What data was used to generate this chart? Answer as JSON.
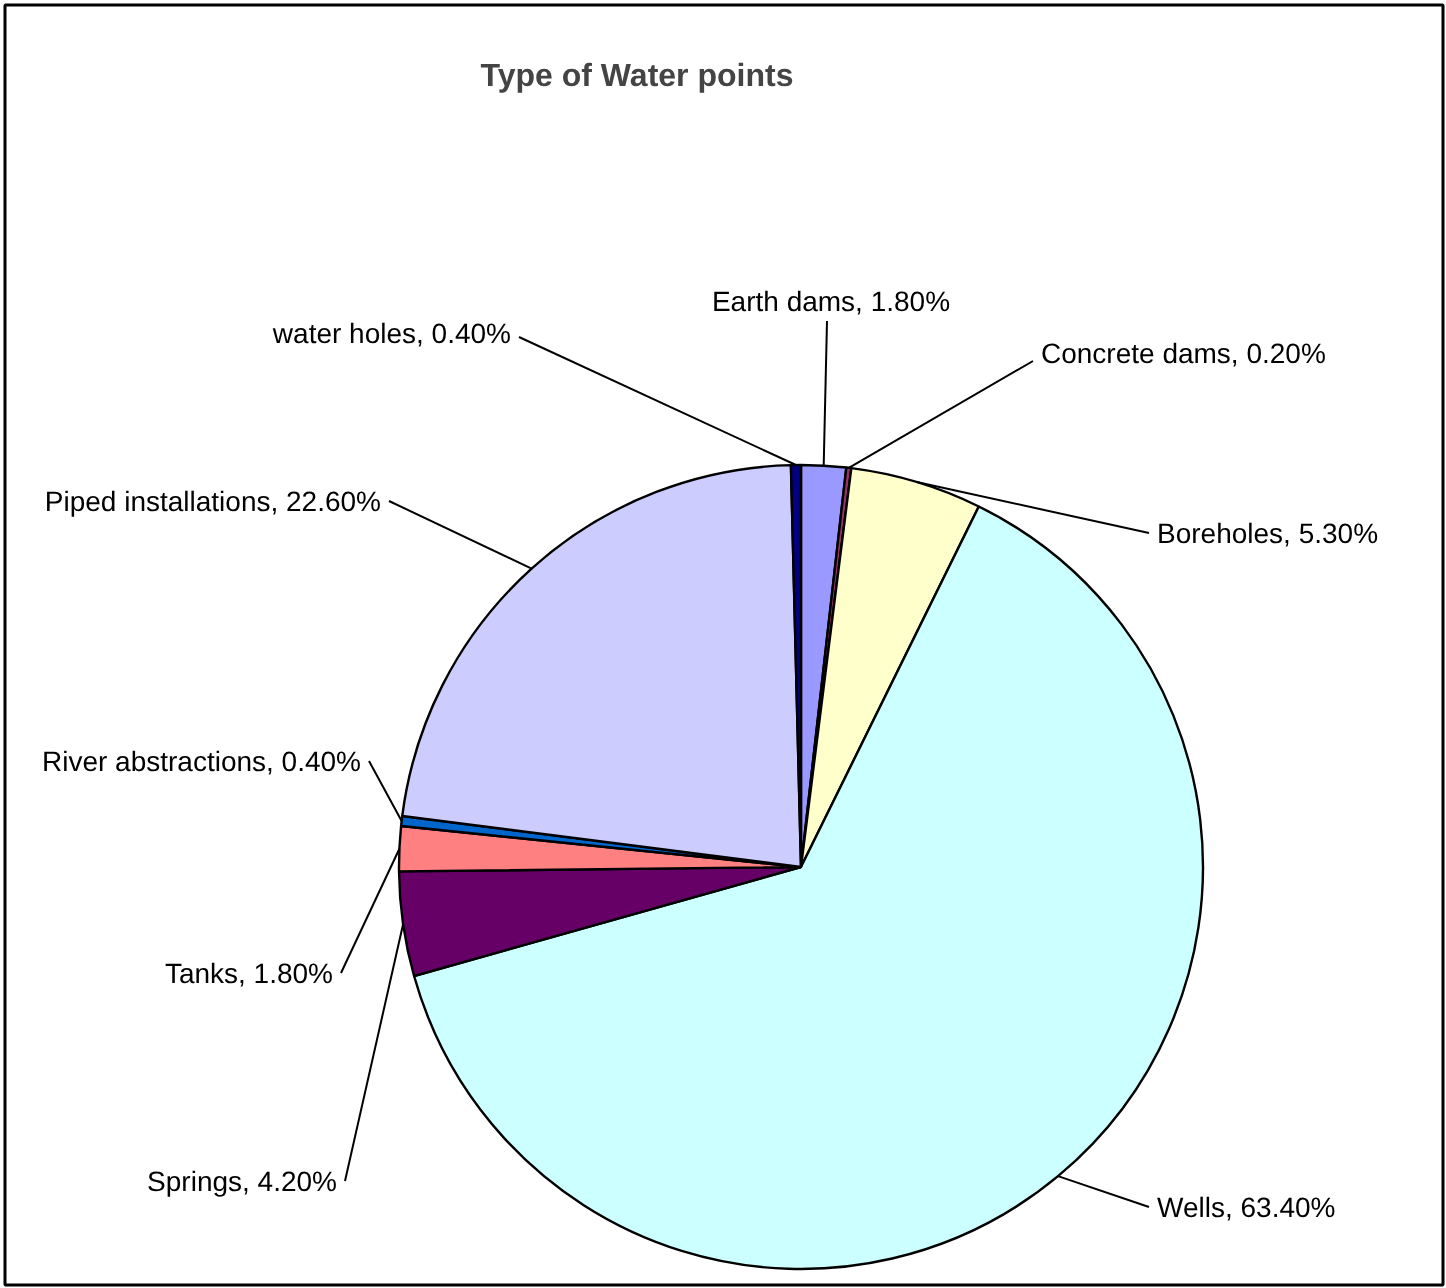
{
  "chart_data": {
    "type": "pie",
    "title": "Type of Water points",
    "categories": [
      "Earth dams",
      "Concrete dams",
      "Boreholes",
      "Wells",
      "Springs",
      "Tanks",
      "River abstractions",
      "Piped installations",
      "water holes"
    ],
    "values": [
      1.8,
      0.2,
      5.3,
      63.4,
      4.2,
      1.8,
      0.4,
      22.6,
      0.4
    ],
    "value_labels": [
      "1.80%",
      "0.20%",
      "5.30%",
      "63.40%",
      "4.20%",
      "1.80%",
      "0.40%",
      "22.60%",
      "0.40%"
    ],
    "colors": [
      "#9999ff",
      "#993366",
      "#ffffcc",
      "#ccffff",
      "#660066",
      "#ff8080",
      "#0066cc",
      "#ccccff",
      "#000080"
    ]
  }
}
